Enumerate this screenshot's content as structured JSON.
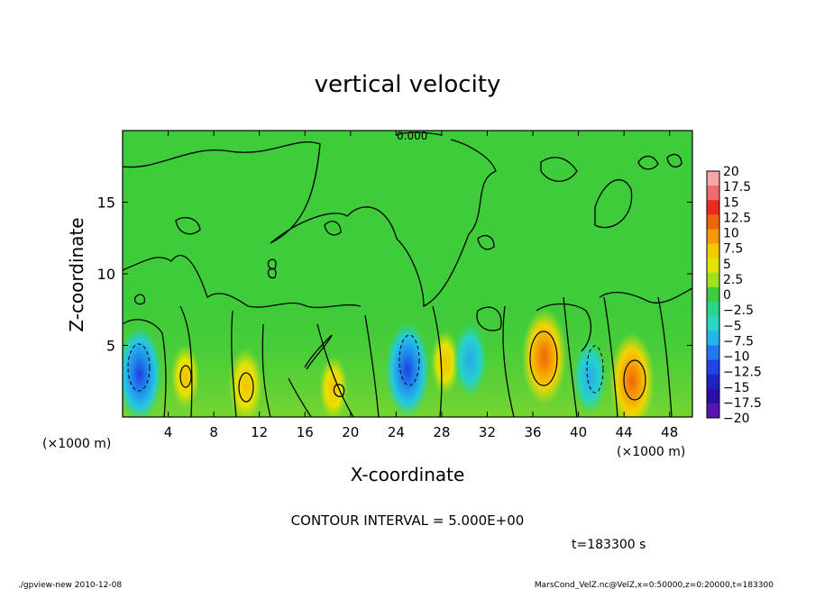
{
  "chart_data": {
    "type": "heatmap",
    "title": "vertical velocity",
    "xlabel": "X-coordinate",
    "ylabel": "Z-coordinate",
    "x_unit_left": "(×1000 m)",
    "x_unit_right": "(×1000 m)",
    "xlim": [
      0,
      50
    ],
    "ylim": [
      0,
      20
    ],
    "x_ticks": [
      4,
      8,
      12,
      16,
      20,
      24,
      28,
      32,
      36,
      40,
      44,
      48
    ],
    "y_ticks": [
      5,
      10,
      15
    ],
    "contour_interval_text": "CONTOUR INTERVAL = 5.000E+00",
    "contour_label": "0.000",
    "time_text": "t=183300 s",
    "colorbar": {
      "levels": [
        20,
        17.5,
        15,
        12.5,
        10,
        7.5,
        5,
        2.5,
        0,
        -2.5,
        -5,
        -7.5,
        -10,
        -12.5,
        -15,
        -17.5,
        -20
      ],
      "labels": [
        "20",
        "17.5",
        "15",
        "12.5",
        "10",
        "7.5",
        "5",
        "2.5",
        "0",
        "−2.5",
        "−5",
        "−7.5",
        "−10",
        "−12.5",
        "−15",
        "−17.5",
        "−20"
      ],
      "colors": [
        "#f7a6a6",
        "#f26b6b",
        "#ec2a1e",
        "#f0640c",
        "#f59a06",
        "#f5c800",
        "#dfe400",
        "#9ee21d",
        "#3fcc3a",
        "#28d68a",
        "#26d6c6",
        "#25b5ee",
        "#1f7af0",
        "#1d45e8",
        "#1f22c4",
        "#2a0fa6",
        "#5a12b0"
      ]
    },
    "features": [
      {
        "x": 1.5,
        "z": 3.0,
        "value": -12.5
      },
      {
        "x": 5.5,
        "z": 2.8,
        "value": 5
      },
      {
        "x": 10.8,
        "z": 2.2,
        "value": 7.5
      },
      {
        "x": 18.5,
        "z": 2.0,
        "value": 5
      },
      {
        "x": 25.0,
        "z": 3.3,
        "value": -12.5
      },
      {
        "x": 28.3,
        "z": 3.8,
        "value": 5
      },
      {
        "x": 30.5,
        "z": 4.0,
        "value": -7.5
      },
      {
        "x": 37.0,
        "z": 4.2,
        "value": 12.5
      },
      {
        "x": 41.0,
        "z": 2.8,
        "value": -7.5
      },
      {
        "x": 44.7,
        "z": 2.5,
        "value": 12.5
      }
    ]
  },
  "footer": {
    "left": "./gpview-new  2010-12-08",
    "right": "MarsCond_VelZ.nc@VelZ,x=0:50000,z=0:20000,t=183300"
  }
}
